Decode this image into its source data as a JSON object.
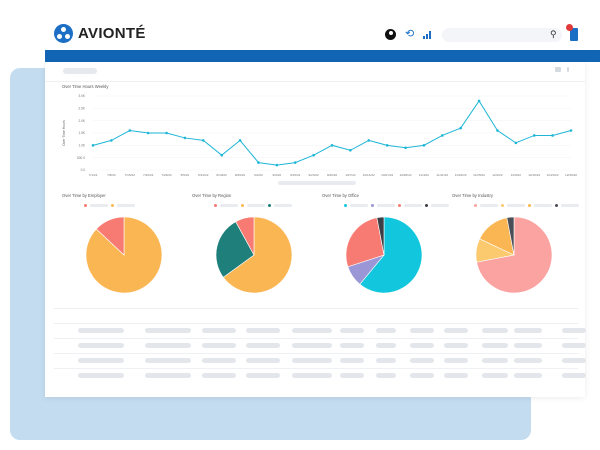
{
  "app": {
    "brand_name": "AVIONTÉ"
  },
  "header": {
    "icons": [
      "user-icon",
      "refresh-icon",
      "bar-chart-icon",
      "search-icon",
      "notification-icon"
    ],
    "accent_color": "#1c6fc4",
    "top_bar_color": "#1265b4"
  },
  "line_chart": {
    "title": "Over Time Hours Weekly",
    "ylabel": "Over Time Hours",
    "chart_data": {
      "type": "line",
      "x": [
        "7/1/22",
        "7/8/22",
        "7/15/22",
        "7/22/22",
        "7/29/22",
        "8/5/22",
        "8/12/22",
        "8/19/22",
        "8/26/22",
        "9/2/22",
        "9/9/22",
        "9/16/22",
        "9/23/22",
        "9/30/22",
        "10/7/22",
        "10/14/22",
        "10/21/22",
        "10/28/22",
        "11/4/22",
        "11/11/22",
        "11/18/22",
        "11/25/22",
        "12/2/22",
        "12/9/22",
        "12/16/22",
        "12/23/22",
        "12/30/22"
      ],
      "series": [
        {
          "values": [
            1.0,
            1.2,
            1.6,
            1.5,
            1.5,
            1.3,
            1.2,
            0.6,
            1.2,
            0.3,
            0.2,
            0.3,
            0.6,
            1.0,
            0.8,
            1.2,
            1.0,
            0.9,
            1.0,
            1.4,
            1.7,
            2.8,
            1.6,
            1.1,
            1.4,
            1.4,
            1.6
          ]
        }
      ],
      "ytick_labels": [
        "3.0K",
        "2.5K",
        "2.0K",
        "1.5K",
        "1.0K",
        "500.0",
        "0.0"
      ],
      "ylim": [
        0,
        3.0
      ],
      "color": "#1fb6d6",
      "grid": true
    }
  },
  "pies": [
    {
      "title": "Over Time by Employer",
      "slices": [
        {
          "value": 87,
          "color": "#fbb654"
        },
        {
          "value": 13,
          "color": "#f77b72"
        }
      ]
    },
    {
      "title": "Over Time by Region",
      "slices": [
        {
          "value": 65,
          "color": "#fbb654"
        },
        {
          "value": 27,
          "color": "#1e7f7b"
        },
        {
          "value": 8,
          "color": "#f77b72"
        }
      ]
    },
    {
      "title": "Over Time by Office",
      "slices": [
        {
          "value": 61,
          "color": "#12c7dd"
        },
        {
          "value": 9,
          "color": "#9b96d6"
        },
        {
          "value": 27,
          "color": "#f77b72"
        },
        {
          "value": 3,
          "color": "#3c3f46"
        }
      ]
    },
    {
      "title": "Over Time by Industry",
      "slices": [
        {
          "value": 72,
          "color": "#fba3a0"
        },
        {
          "value": 10,
          "color": "#fbc96e"
        },
        {
          "value": 15,
          "color": "#fbb654"
        },
        {
          "value": 3,
          "color": "#4a4e57"
        }
      ]
    }
  ]
}
